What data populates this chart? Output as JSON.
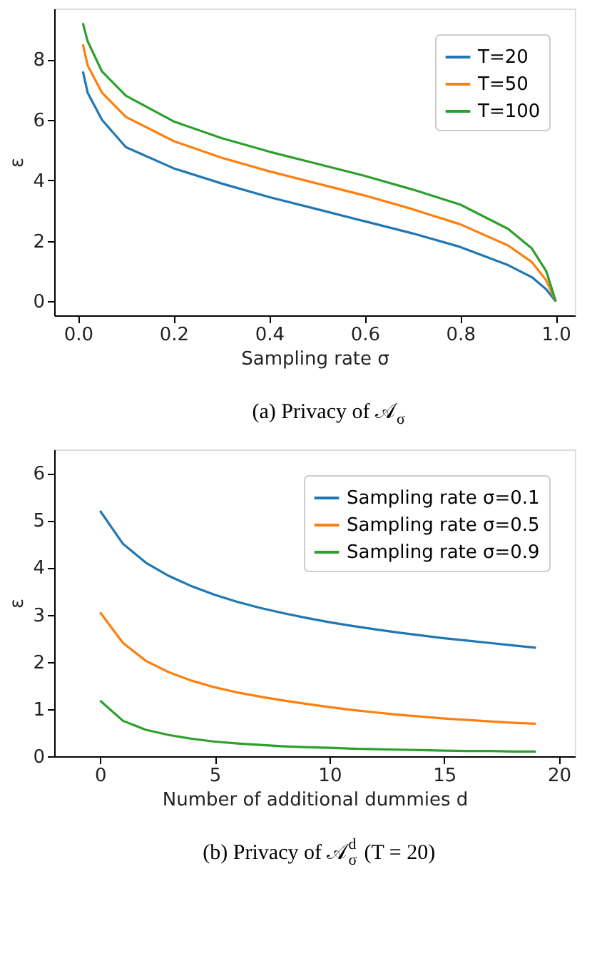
{
  "chart_data": [
    {
      "type": "line",
      "xlabel": "Sampling rate σ",
      "ylabel": "ε",
      "annotations": [
        "(a) Privacy of 𝒜$_{σ}$"
      ],
      "x": [
        0.01,
        0.02,
        0.05,
        0.1,
        0.2,
        0.3,
        0.4,
        0.5,
        0.6,
        0.7,
        0.8,
        0.9,
        0.95,
        0.98,
        1.0
      ],
      "xlim": [
        -0.05,
        1.04
      ],
      "ylim": [
        -0.46,
        9.68
      ],
      "xticks": [
        {
          "value": 0,
          "label": "0.0"
        },
        0.2,
        0.4,
        0.6,
        0.8,
        {
          "value": 1,
          "label": "1.0"
        }
      ],
      "yticks": [
        0,
        2,
        4,
        6,
        8
      ],
      "legend": "top right",
      "grid": false,
      "series": [
        {
          "name": "T=20",
          "color": "#1f77b4",
          "values": [
            7.6,
            6.9,
            6.0,
            5.1,
            4.4,
            3.9,
            3.45,
            3.05,
            2.65,
            2.25,
            1.8,
            1.2,
            0.8,
            0.4,
            0
          ]
        },
        {
          "name": "T=50",
          "color": "#ff7f0e",
          "values": [
            8.5,
            7.8,
            6.9,
            6.1,
            5.3,
            4.75,
            4.3,
            3.9,
            3.5,
            3.05,
            2.55,
            1.85,
            1.3,
            0.7,
            0
          ]
        },
        {
          "name": "T=100",
          "color": "#2ca02c",
          "values": [
            9.2,
            8.6,
            7.6,
            6.8,
            5.95,
            5.4,
            4.95,
            4.55,
            4.15,
            3.7,
            3.2,
            2.4,
            1.75,
            1.0,
            0
          ]
        }
      ]
    },
    {
      "type": "line",
      "xlabel": "Number of additional dummies d",
      "ylabel": "ε",
      "annotations": [
        "(b) Privacy of 𝒜$_{σ}$$^{d}$ (T = 20)"
      ],
      "x": [
        0,
        1,
        2,
        3,
        4,
        5,
        6,
        7,
        8,
        9,
        10,
        11,
        12,
        13,
        14,
        15,
        16,
        17,
        18,
        19
      ],
      "xlim": [
        -2,
        20.7
      ],
      "ylim": [
        0,
        6.5
      ],
      "xticks": [
        0,
        5,
        10,
        15,
        20
      ],
      "yticks": [
        0,
        1,
        2,
        3,
        4,
        5,
        6
      ],
      "legend": "top right",
      "grid": false,
      "series": [
        {
          "name": "Sampling rate σ=0.1",
          "color": "#1f77b4",
          "values": [
            5.2,
            4.5,
            4.1,
            3.82,
            3.6,
            3.42,
            3.27,
            3.14,
            3.03,
            2.93,
            2.84,
            2.76,
            2.69,
            2.62,
            2.56,
            2.5,
            2.45,
            2.4,
            2.35,
            2.3
          ]
        },
        {
          "name": "Sampling rate σ=0.5",
          "color": "#ff7f0e",
          "values": [
            3.05,
            2.4,
            2.02,
            1.78,
            1.6,
            1.46,
            1.35,
            1.26,
            1.18,
            1.11,
            1.04,
            0.98,
            0.93,
            0.88,
            0.84,
            0.8,
            0.77,
            0.74,
            0.71,
            0.69
          ]
        },
        {
          "name": "Sampling rate σ=0.9",
          "color": "#2ca02c",
          "values": [
            1.18,
            0.75,
            0.56,
            0.45,
            0.37,
            0.31,
            0.27,
            0.24,
            0.21,
            0.19,
            0.18,
            0.16,
            0.15,
            0.14,
            0.13,
            0.12,
            0.11,
            0.11,
            0.1,
            0.1
          ]
        }
      ]
    }
  ]
}
